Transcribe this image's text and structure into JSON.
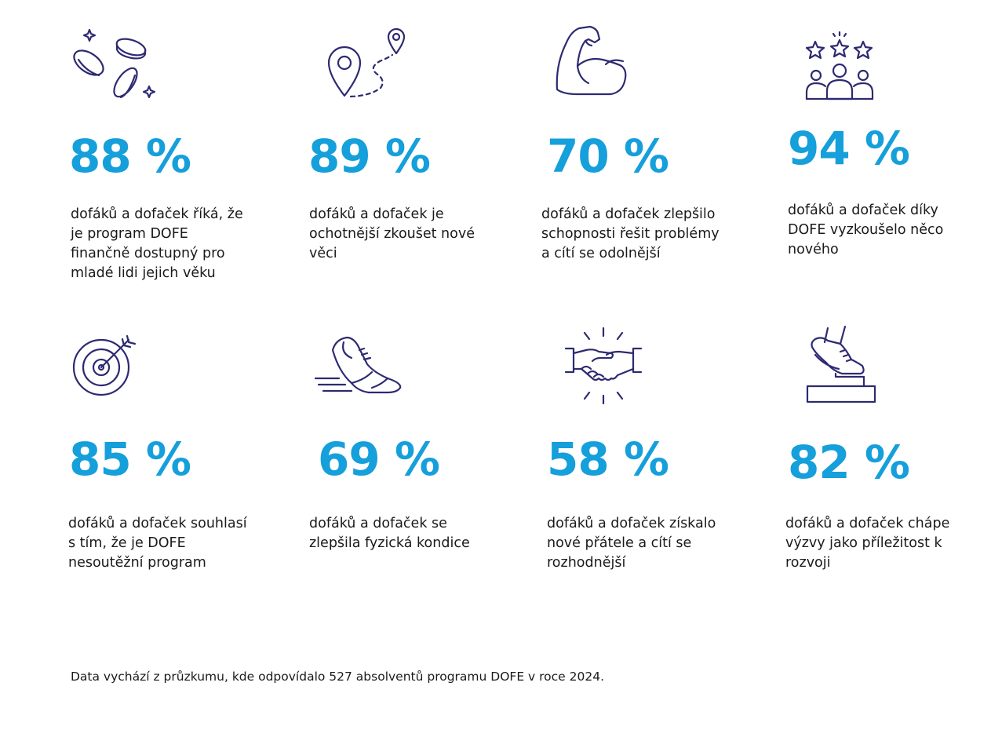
{
  "stats": [
    {
      "value": "88 %",
      "text": "dofáků a dofaček říká, že je program DOFE finančně dostupný pro mladé lidi jejich věku",
      "icon": "coins-icon"
    },
    {
      "value": "89 %",
      "text": "dofáků a dofaček je ochotnější zkoušet nové věci",
      "icon": "route-pin-icon"
    },
    {
      "value": "70 %",
      "text": "dofáků a dofaček zlepšilo schopnosti řešit problémy a cítí se odolnější",
      "icon": "flexed-arm-icon"
    },
    {
      "value": "94 %",
      "text": "dofáků a dofaček díky DOFE vyzkoušelo něco nového",
      "icon": "group-stars-icon"
    },
    {
      "value": "85 %",
      "text": "dofáků a dofaček souhlasí s tím, že je DOFE nesoutěžní program",
      "icon": "target-icon"
    },
    {
      "value": "69 %",
      "text": "dofáků a dofaček se zlepšila fyzická kondice",
      "icon": "running-shoe-icon"
    },
    {
      "value": "58 %",
      "text": "dofáků a dofaček získalo nové přátele a cítí se rozhodnější",
      "icon": "handshake-icon"
    },
    {
      "value": "82 %",
      "text": "dofáků a dofaček chápe výzvy jako příležitost k rozvoji",
      "icon": "step-up-icon"
    }
  ],
  "footnote": "Data vychází z průzkumu, kde odpovídalo 527 absolventů programu DOFE v roce 2024.",
  "colors": {
    "accent": "#159fdb",
    "icon": "#2d2a72",
    "text": "#1a1a1a"
  }
}
